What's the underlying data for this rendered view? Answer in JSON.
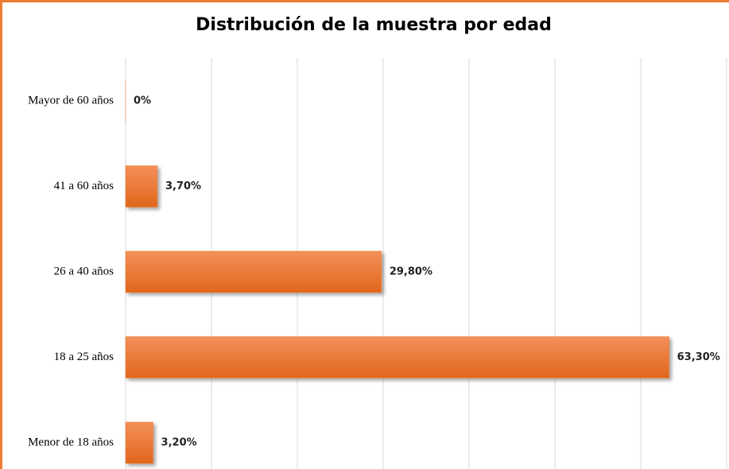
{
  "chart_data": {
    "type": "bar",
    "orientation": "horizontal",
    "title": "Distribución  de la muestra por edad",
    "categories": [
      "Mayor de 60 años",
      "41 a 60 años",
      "26 a 40 años",
      "18 a 25 años",
      "Menor de 18 años"
    ],
    "values": [
      0,
      3.7,
      29.8,
      63.3,
      3.2
    ],
    "value_labels": [
      "0%",
      "3,70%",
      "29,80%",
      "63,30%",
      "3,20%"
    ],
    "color": "#ed7d31",
    "xlim": [
      0,
      70
    ],
    "xticks": [
      0,
      10,
      20,
      30,
      40,
      50,
      60,
      70
    ],
    "grid": true
  }
}
